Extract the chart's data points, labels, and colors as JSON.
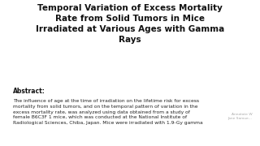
{
  "background_color": "#e8e8e8",
  "inner_background": "#ffffff",
  "title": "Temporal Variation of Excess Mortality\nRate from Solid Tumors in Mice\nIrradiated at Various Ages with Gamma\nRays",
  "abstract_label": "Abstract:",
  "abstract_text": "The influence of age at the time of irradiation on the lifetime risk for excess\nmortality from solid tumors, and on the temporal pattern of variation in the\nexcess mortality rate, was analyzed using data obtained from a study of\nfemale B6C3F 1 mice, which was conducted at the National Institute of\nRadiological Sciences, Chiba, Japan. Mice were irradiated with 1.9-Gy gamma",
  "watermark_line1": "Annotate W",
  "watermark_line2": "Jane Samue...",
  "title_fontsize": 7.5,
  "abstract_label_fontsize": 5.5,
  "abstract_text_fontsize": 4.3,
  "watermark_fontsize": 3.2,
  "title_color": "#111111",
  "abstract_label_color": "#111111",
  "abstract_text_color": "#222222",
  "watermark_color": "#aaaaaa"
}
